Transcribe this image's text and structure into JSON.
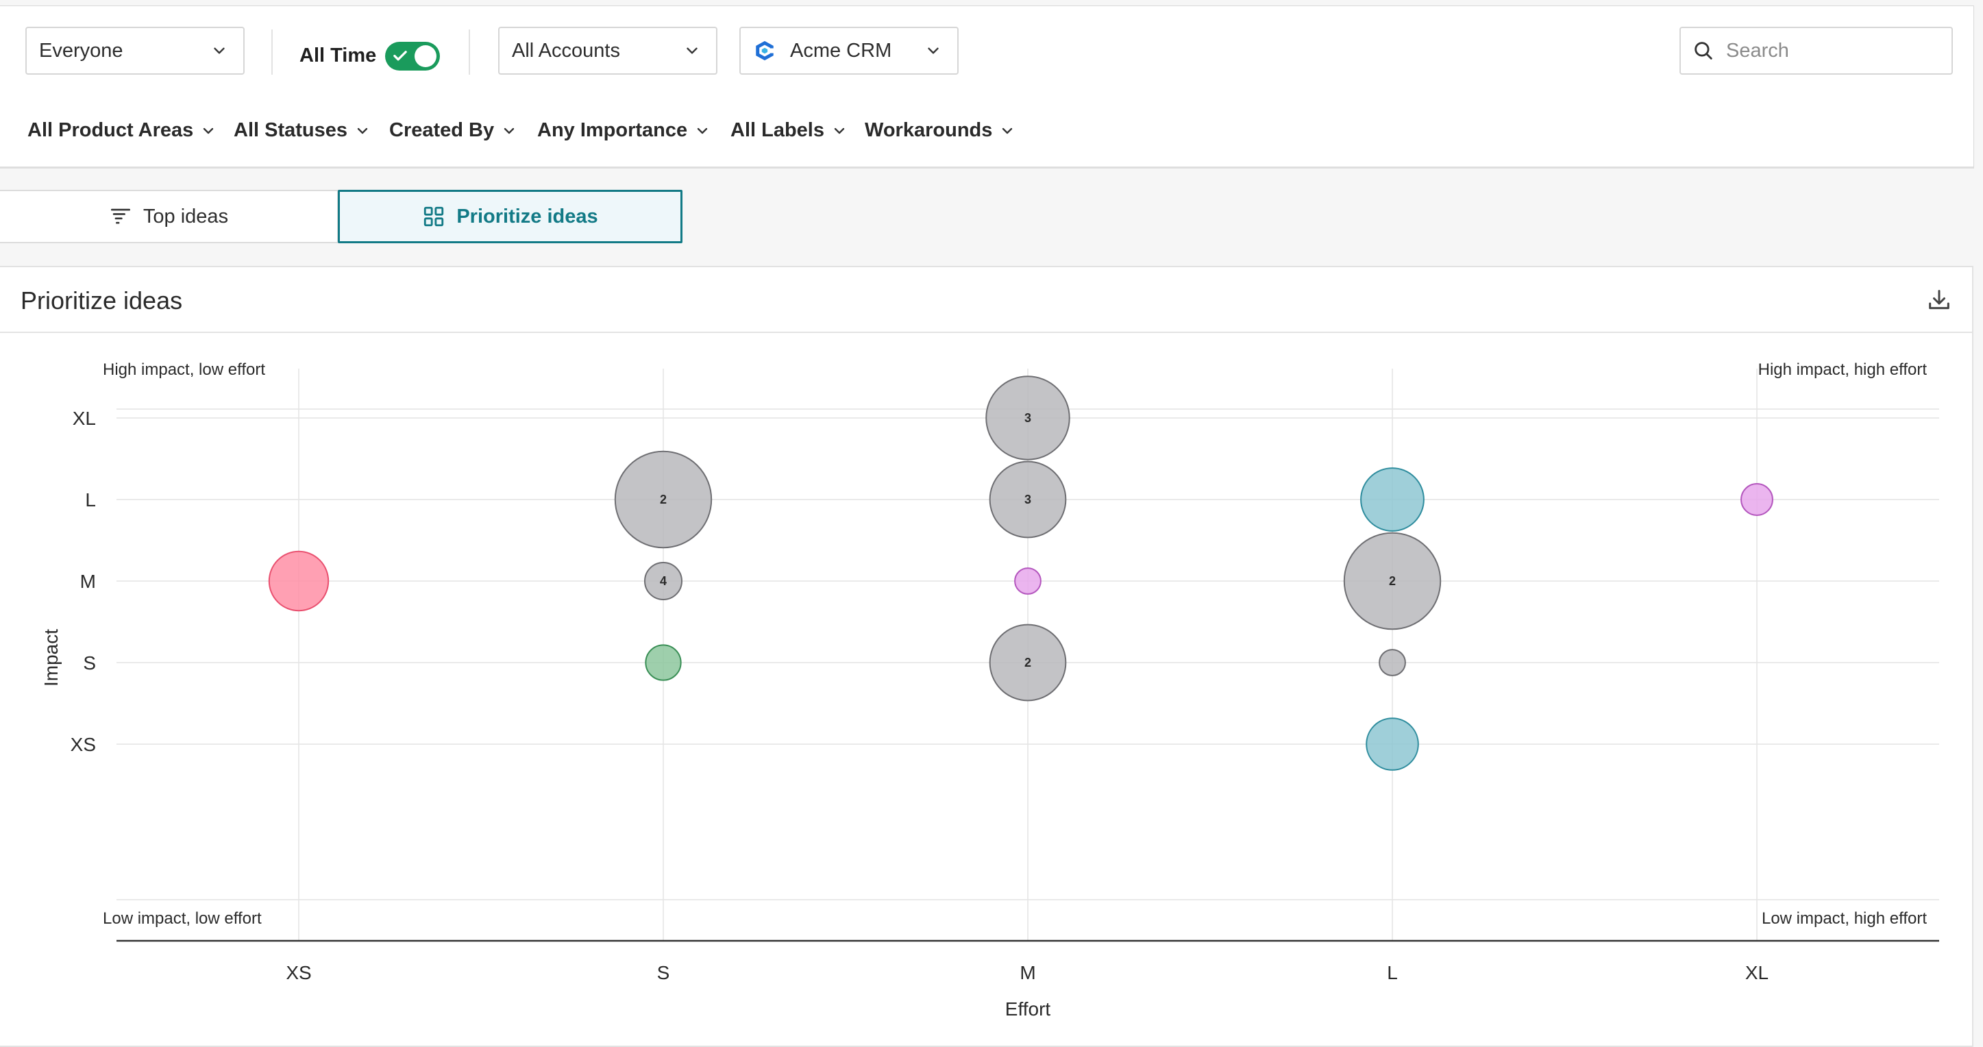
{
  "toolbar": {
    "people_select": "Everyone",
    "all_time_label": "All Time",
    "all_time_on": true,
    "accounts_select": "All Accounts",
    "crm_select": "Acme CRM",
    "search_placeholder": "Search"
  },
  "filters": [
    "All Product Areas",
    "All Statuses",
    "Created By",
    "Any Importance",
    "All Labels",
    "Workarounds"
  ],
  "tabs": {
    "top_ideas": "Top ideas",
    "prioritize_ideas": "Prioritize ideas",
    "active": "prioritize_ideas"
  },
  "card": {
    "title": "Prioritize ideas"
  },
  "colors": {
    "accent": "#127a86",
    "toggle_on": "#1a9b5c"
  },
  "chart_data": {
    "type": "scatter",
    "xlabel": "Effort",
    "ylabel": "Impact",
    "x_categories": [
      "XS",
      "S",
      "M",
      "L",
      "XL"
    ],
    "y_categories": [
      "XS",
      "S",
      "M",
      "L",
      "XL"
    ],
    "quadrant_labels": {
      "top_left": "High impact, low effort",
      "top_right": "High impact, high effort",
      "bottom_left": "Low impact, low effort",
      "bottom_right": "Low impact, high effort"
    },
    "grid": true,
    "points": [
      {
        "x": "XS",
        "y": "M",
        "size": 1.6,
        "color": "#ff8fa6",
        "stroke": "#e9506f",
        "count": ""
      },
      {
        "x": "S",
        "y": "L",
        "size": 2.6,
        "color": "#b8b8bc",
        "stroke": "#6e6e72",
        "count": "2"
      },
      {
        "x": "S",
        "y": "M",
        "size": 1.0,
        "color": "#b8b8bc",
        "stroke": "#6e6e72",
        "count": "4"
      },
      {
        "x": "S",
        "y": "S",
        "size": 0.95,
        "color": "#8dc79d",
        "stroke": "#3a8f56",
        "count": ""
      },
      {
        "x": "M",
        "y": "XL",
        "size": 2.25,
        "color": "#b8b8bc",
        "stroke": "#6e6e72",
        "count": "3"
      },
      {
        "x": "M",
        "y": "L",
        "size": 2.05,
        "color": "#b8b8bc",
        "stroke": "#6e6e72",
        "count": "3"
      },
      {
        "x": "M",
        "y": "M",
        "size": 0.7,
        "color": "#e8a8ec",
        "stroke": "#b457be",
        "count": ""
      },
      {
        "x": "M",
        "y": "S",
        "size": 2.05,
        "color": "#b8b8bc",
        "stroke": "#6e6e72",
        "count": "2"
      },
      {
        "x": "L",
        "y": "L",
        "size": 1.7,
        "color": "#8ec7d2",
        "stroke": "#2f8d9e",
        "count": ""
      },
      {
        "x": "L",
        "y": "M",
        "size": 2.6,
        "color": "#b8b8bc",
        "stroke": "#6e6e72",
        "count": "2"
      },
      {
        "x": "L",
        "y": "S",
        "size": 0.7,
        "color": "#b8b8bc",
        "stroke": "#6e6e72",
        "count": ""
      },
      {
        "x": "L",
        "y": "XS",
        "size": 1.4,
        "color": "#8ec7d2",
        "stroke": "#2f8d9e",
        "count": ""
      },
      {
        "x": "XL",
        "y": "L",
        "size": 0.85,
        "color": "#e8a8ec",
        "stroke": "#b457be",
        "count": ""
      }
    ]
  }
}
